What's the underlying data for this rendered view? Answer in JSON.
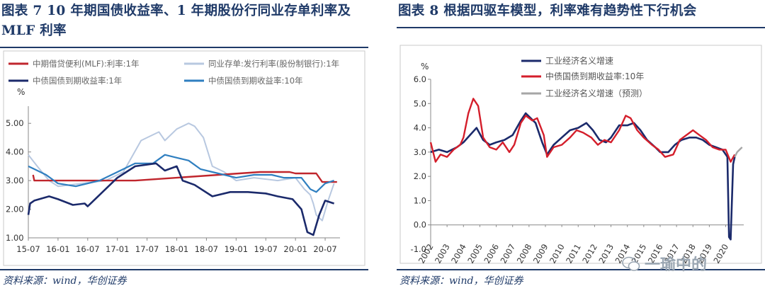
{
  "left": {
    "title": "图表 7   10 年期国债收益率、1 年期股份行同业存单利率及 MLF 利率",
    "source": "资料来源：wind，华创证券",
    "chart_data": {
      "type": "line",
      "ylabel": "%",
      "ylim": [
        1.0,
        5.5
      ],
      "yticks": [
        "1.00",
        "2.00",
        "3.00",
        "4.00",
        "5.00"
      ],
      "xticks": [
        "15-07",
        "16-01",
        "16-07",
        "17-01",
        "17-07",
        "18-01",
        "18-07",
        "19-01",
        "19-07",
        "20-01",
        "20-07"
      ],
      "x_start": "2015-07",
      "x_end": "2020-09",
      "legend": [
        "中期借贷便利(MLF):利率:1年",
        "同业存单:发行利率(股份制银行):1年",
        "中债国债到期收益率:1年",
        "中债国债到期收益率:10年"
      ],
      "colors": [
        "#c0262d",
        "#b8c8e0",
        "#1b2a6b",
        "#2f7fc0"
      ],
      "series": [
        {
          "name": "中期借贷便利(MLF):利率:1年",
          "x": [
            0.08,
            0.1,
            0.18,
            1.8,
            3.9,
            4.4,
            4.5,
            4.85,
            4.95,
            5.2
          ],
          "values": [
            3.2,
            3.0,
            3.0,
            3.0,
            3.3,
            3.3,
            3.25,
            3.25,
            2.95,
            2.95
          ]
        },
        {
          "name": "同业存单:发行利率(股份制银行):1年",
          "x": [
            0,
            0.15,
            0.35,
            0.5,
            0.9,
            1.3,
            1.6,
            1.9,
            2.1,
            2.2,
            2.3,
            2.5,
            2.7,
            2.8,
            2.95,
            3.1,
            3.3,
            3.5,
            3.8,
            4.2,
            4.5,
            4.65,
            4.75,
            4.8,
            4.85,
            4.95,
            5.05,
            5.15
          ],
          "values": [
            3.9,
            3.5,
            3.0,
            2.8,
            2.9,
            3.0,
            3.3,
            4.4,
            4.6,
            4.7,
            4.4,
            4.8,
            5.0,
            4.9,
            4.5,
            3.5,
            3.3,
            3.0,
            3.1,
            3.0,
            3.1,
            2.7,
            2.5,
            2.2,
            1.8,
            1.6,
            2.3,
            2.9
          ]
        },
        {
          "name": "中债国债到期收益率:1年",
          "x": [
            0,
            0.03,
            0.1,
            0.35,
            0.5,
            0.75,
            0.95,
            1.0,
            1.3,
            1.5,
            1.8,
            2.15,
            2.3,
            2.5,
            2.6,
            2.8,
            3.1,
            3.4,
            3.7,
            4.0,
            4.2,
            4.45,
            4.6,
            4.7,
            4.8,
            4.9,
            5.0,
            5.15
          ],
          "values": [
            1.8,
            2.2,
            2.3,
            2.45,
            2.35,
            2.15,
            2.2,
            2.1,
            2.7,
            3.1,
            3.5,
            3.6,
            3.35,
            3.5,
            3.0,
            2.85,
            2.45,
            2.6,
            2.6,
            2.55,
            2.45,
            2.35,
            2.0,
            1.2,
            1.1,
            1.8,
            2.3,
            2.2
          ]
        },
        {
          "name": "中债国债到期收益率:10年",
          "x": [
            0,
            0.1,
            0.3,
            0.5,
            0.8,
            1.2,
            1.5,
            1.8,
            2.1,
            2.3,
            2.5,
            2.7,
            2.9,
            3.1,
            3.3,
            3.5,
            3.8,
            4.1,
            4.3,
            4.6,
            4.75,
            4.85,
            5.0,
            5.15
          ],
          "values": [
            3.5,
            3.4,
            3.2,
            2.9,
            2.8,
            3.0,
            3.3,
            3.6,
            3.6,
            3.9,
            3.8,
            3.7,
            3.4,
            3.3,
            3.2,
            3.1,
            3.2,
            3.2,
            3.1,
            3.1,
            2.7,
            2.6,
            2.9,
            3.0
          ]
        }
      ]
    }
  },
  "right": {
    "title": "图表 8   根据四驱车模型，利率难有趋势性下行机会",
    "source": "资料来源：wind，华创证券",
    "chart_data": {
      "type": "line",
      "ylabel": "%",
      "ylim": [
        -1.0,
        6.0
      ],
      "yticks": [
        "-1.0",
        "0.0",
        "1.0",
        "2.0",
        "3.0",
        "4.0",
        "5.0",
        "6.0"
      ],
      "xticks": [
        "2002",
        "2003",
        "2004",
        "2005",
        "2006",
        "2007",
        "2008",
        "2009",
        "2010",
        "2011",
        "2012",
        "2013",
        "2014",
        "2015",
        "2016",
        "2017",
        "2018",
        "2019",
        "2020"
      ],
      "legend": [
        "工业经济名义增速",
        "中债国债到期收益率:10年",
        "工业经济名义增速（预测）"
      ],
      "colors": [
        "#1b2a6b",
        "#d41e2b",
        "#a6a6a6"
      ],
      "series": [
        {
          "name": "工业经济名义增速",
          "x": [
            2002,
            2002.5,
            2003,
            2003.6,
            2004,
            2004.4,
            2004.8,
            2005.2,
            2005.6,
            2006,
            2006.5,
            2007,
            2007.5,
            2007.8,
            2008.1,
            2008.4,
            2008.8,
            2009.1,
            2009.5,
            2010,
            2010.5,
            2011,
            2011.5,
            2011.9,
            2012.3,
            2012.7,
            2013,
            2013.5,
            2014,
            2014.4,
            2014.8,
            2015.2,
            2015.7,
            2016,
            2016.5,
            2016.9,
            2017.3,
            2017.8,
            2018.2,
            2018.6,
            2019,
            2019.4,
            2019.8,
            2020.1,
            2020.2,
            2020.3,
            2020.45,
            2020.55
          ],
          "values": [
            3.0,
            3.1,
            3.0,
            3.2,
            3.4,
            3.7,
            4.0,
            3.5,
            3.3,
            3.4,
            3.5,
            3.7,
            4.3,
            4.6,
            4.4,
            4.2,
            3.4,
            2.9,
            3.3,
            3.6,
            3.9,
            4.0,
            4.2,
            3.9,
            3.5,
            3.4,
            3.6,
            4.1,
            4.1,
            4.2,
            3.9,
            3.5,
            3.2,
            3.0,
            3.0,
            3.3,
            3.5,
            3.6,
            3.6,
            3.5,
            3.3,
            3.2,
            3.1,
            2.8,
            -0.5,
            -0.6,
            2.5,
            2.8
          ]
        },
        {
          "name": "中债国债到期收益率:10年",
          "x": [
            2002,
            2002.3,
            2002.6,
            2003,
            2003.4,
            2003.8,
            2004,
            2004.3,
            2004.6,
            2004.9,
            2005.2,
            2005.6,
            2006,
            2006.4,
            2006.8,
            2007.1,
            2007.5,
            2007.8,
            2008.2,
            2008.5,
            2008.9,
            2009.1,
            2009.5,
            2010,
            2010.5,
            2010.9,
            2011.3,
            2011.8,
            2012.2,
            2012.6,
            2013,
            2013.5,
            2013.9,
            2014.2,
            2014.6,
            2015,
            2015.5,
            2015.9,
            2016.3,
            2016.8,
            2017.2,
            2017.6,
            2018,
            2018.4,
            2018.8,
            2019.2,
            2019.6,
            2020,
            2020.3,
            2020.55
          ],
          "values": [
            3.4,
            2.6,
            2.9,
            2.8,
            3.1,
            3.3,
            3.6,
            4.6,
            5.2,
            4.9,
            3.6,
            3.2,
            3.1,
            3.4,
            3.0,
            3.3,
            4.2,
            4.5,
            4.3,
            4.4,
            3.7,
            2.8,
            3.2,
            3.3,
            3.6,
            3.9,
            3.8,
            3.6,
            3.3,
            3.5,
            3.4,
            3.9,
            4.5,
            4.4,
            3.9,
            3.6,
            3.3,
            3.1,
            2.8,
            2.9,
            3.5,
            3.7,
            3.9,
            3.7,
            3.5,
            3.2,
            3.1,
            3.1,
            2.6,
            2.9
          ]
        },
        {
          "name": "工业经济名义增速（预测）",
          "x": [
            2020.55,
            2020.7,
            2020.85,
            2021.0
          ],
          "values": [
            2.8,
            3.0,
            3.1,
            3.2
          ]
        }
      ]
    }
  },
  "watermark": "一瑜中的"
}
